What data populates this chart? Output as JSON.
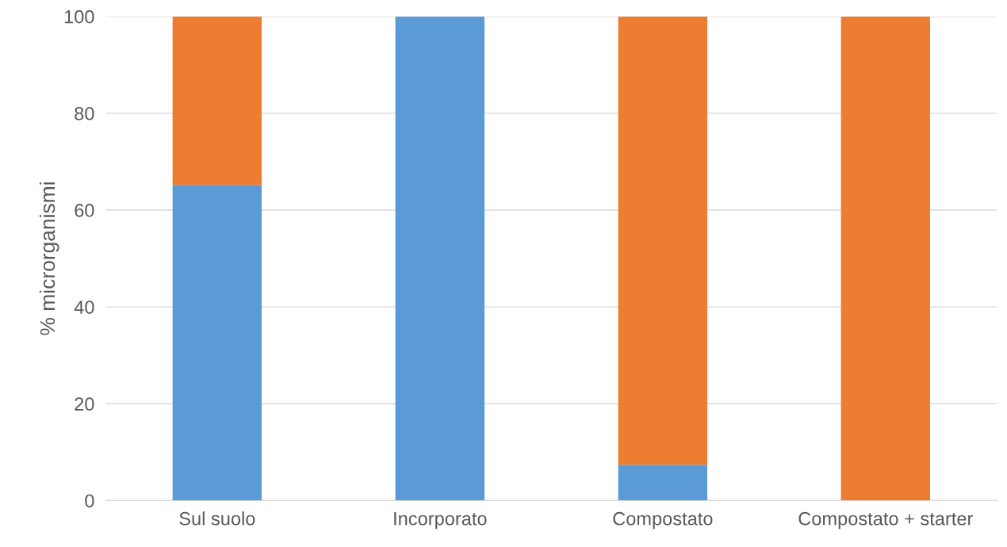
{
  "chart_data": {
    "type": "bar",
    "stacked": true,
    "ylabel": "% microrganismi",
    "categories": [
      "Sul suolo",
      "Incorporato",
      "Compostato",
      "Compostato + starter"
    ],
    "series": [
      {
        "color": "#5b9bd5",
        "values": [
          65.2,
          100,
          7.4,
          0
        ]
      },
      {
        "color": "#ed7d31",
        "values": [
          34.8,
          0,
          92.6,
          100
        ]
      }
    ],
    "ylim": [
      0,
      100
    ],
    "yticks": [
      0,
      20,
      40,
      60,
      80,
      100
    ],
    "grid": "y",
    "legend": false
  }
}
